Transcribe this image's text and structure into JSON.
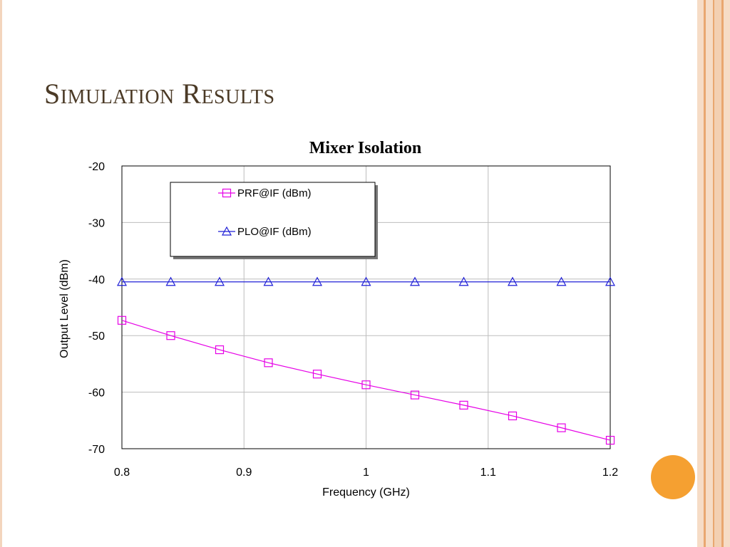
{
  "slide": {
    "title": "Simulation Results",
    "accent_color": "#f5a031",
    "border_colors": [
      "#f3d5bd",
      "#f0c9a6",
      "#e9a770"
    ]
  },
  "chart_data": {
    "type": "line",
    "title": "Mixer Isolation",
    "xlabel": "Frequency (GHz)",
    "ylabel": "Output Level (dBm)",
    "xlim": [
      0.8,
      1.2
    ],
    "ylim": [
      -70,
      -20
    ],
    "xticks": [
      0.8,
      0.9,
      1,
      1.1,
      1.2
    ],
    "xtick_labels": [
      "0.8",
      "0.9",
      "1",
      "1.1",
      "1.2"
    ],
    "yticks": [
      -20,
      -30,
      -40,
      -50,
      -60,
      -70
    ],
    "ytick_labels": [
      "-20",
      "-30",
      "-40",
      "-50",
      "-60",
      "-70"
    ],
    "grid": true,
    "legend_position": "top-left",
    "x": [
      0.8,
      0.84,
      0.88,
      0.92,
      0.96,
      1.0,
      1.04,
      1.08,
      1.12,
      1.16,
      1.2
    ],
    "series": [
      {
        "name": "PRF@IF (dBm)",
        "color": "#e600e6",
        "marker": "square",
        "values": [
          -47.3,
          -50.0,
          -52.5,
          -54.8,
          -56.8,
          -58.7,
          -60.5,
          -62.3,
          -64.2,
          -66.3,
          -68.5
        ]
      },
      {
        "name": "PLO@IF (dBm)",
        "color": "#1f1fd6",
        "marker": "triangle",
        "values": [
          -40.5,
          -40.5,
          -40.5,
          -40.5,
          -40.5,
          -40.5,
          -40.5,
          -40.5,
          -40.5,
          -40.5,
          -40.5
        ]
      }
    ]
  }
}
